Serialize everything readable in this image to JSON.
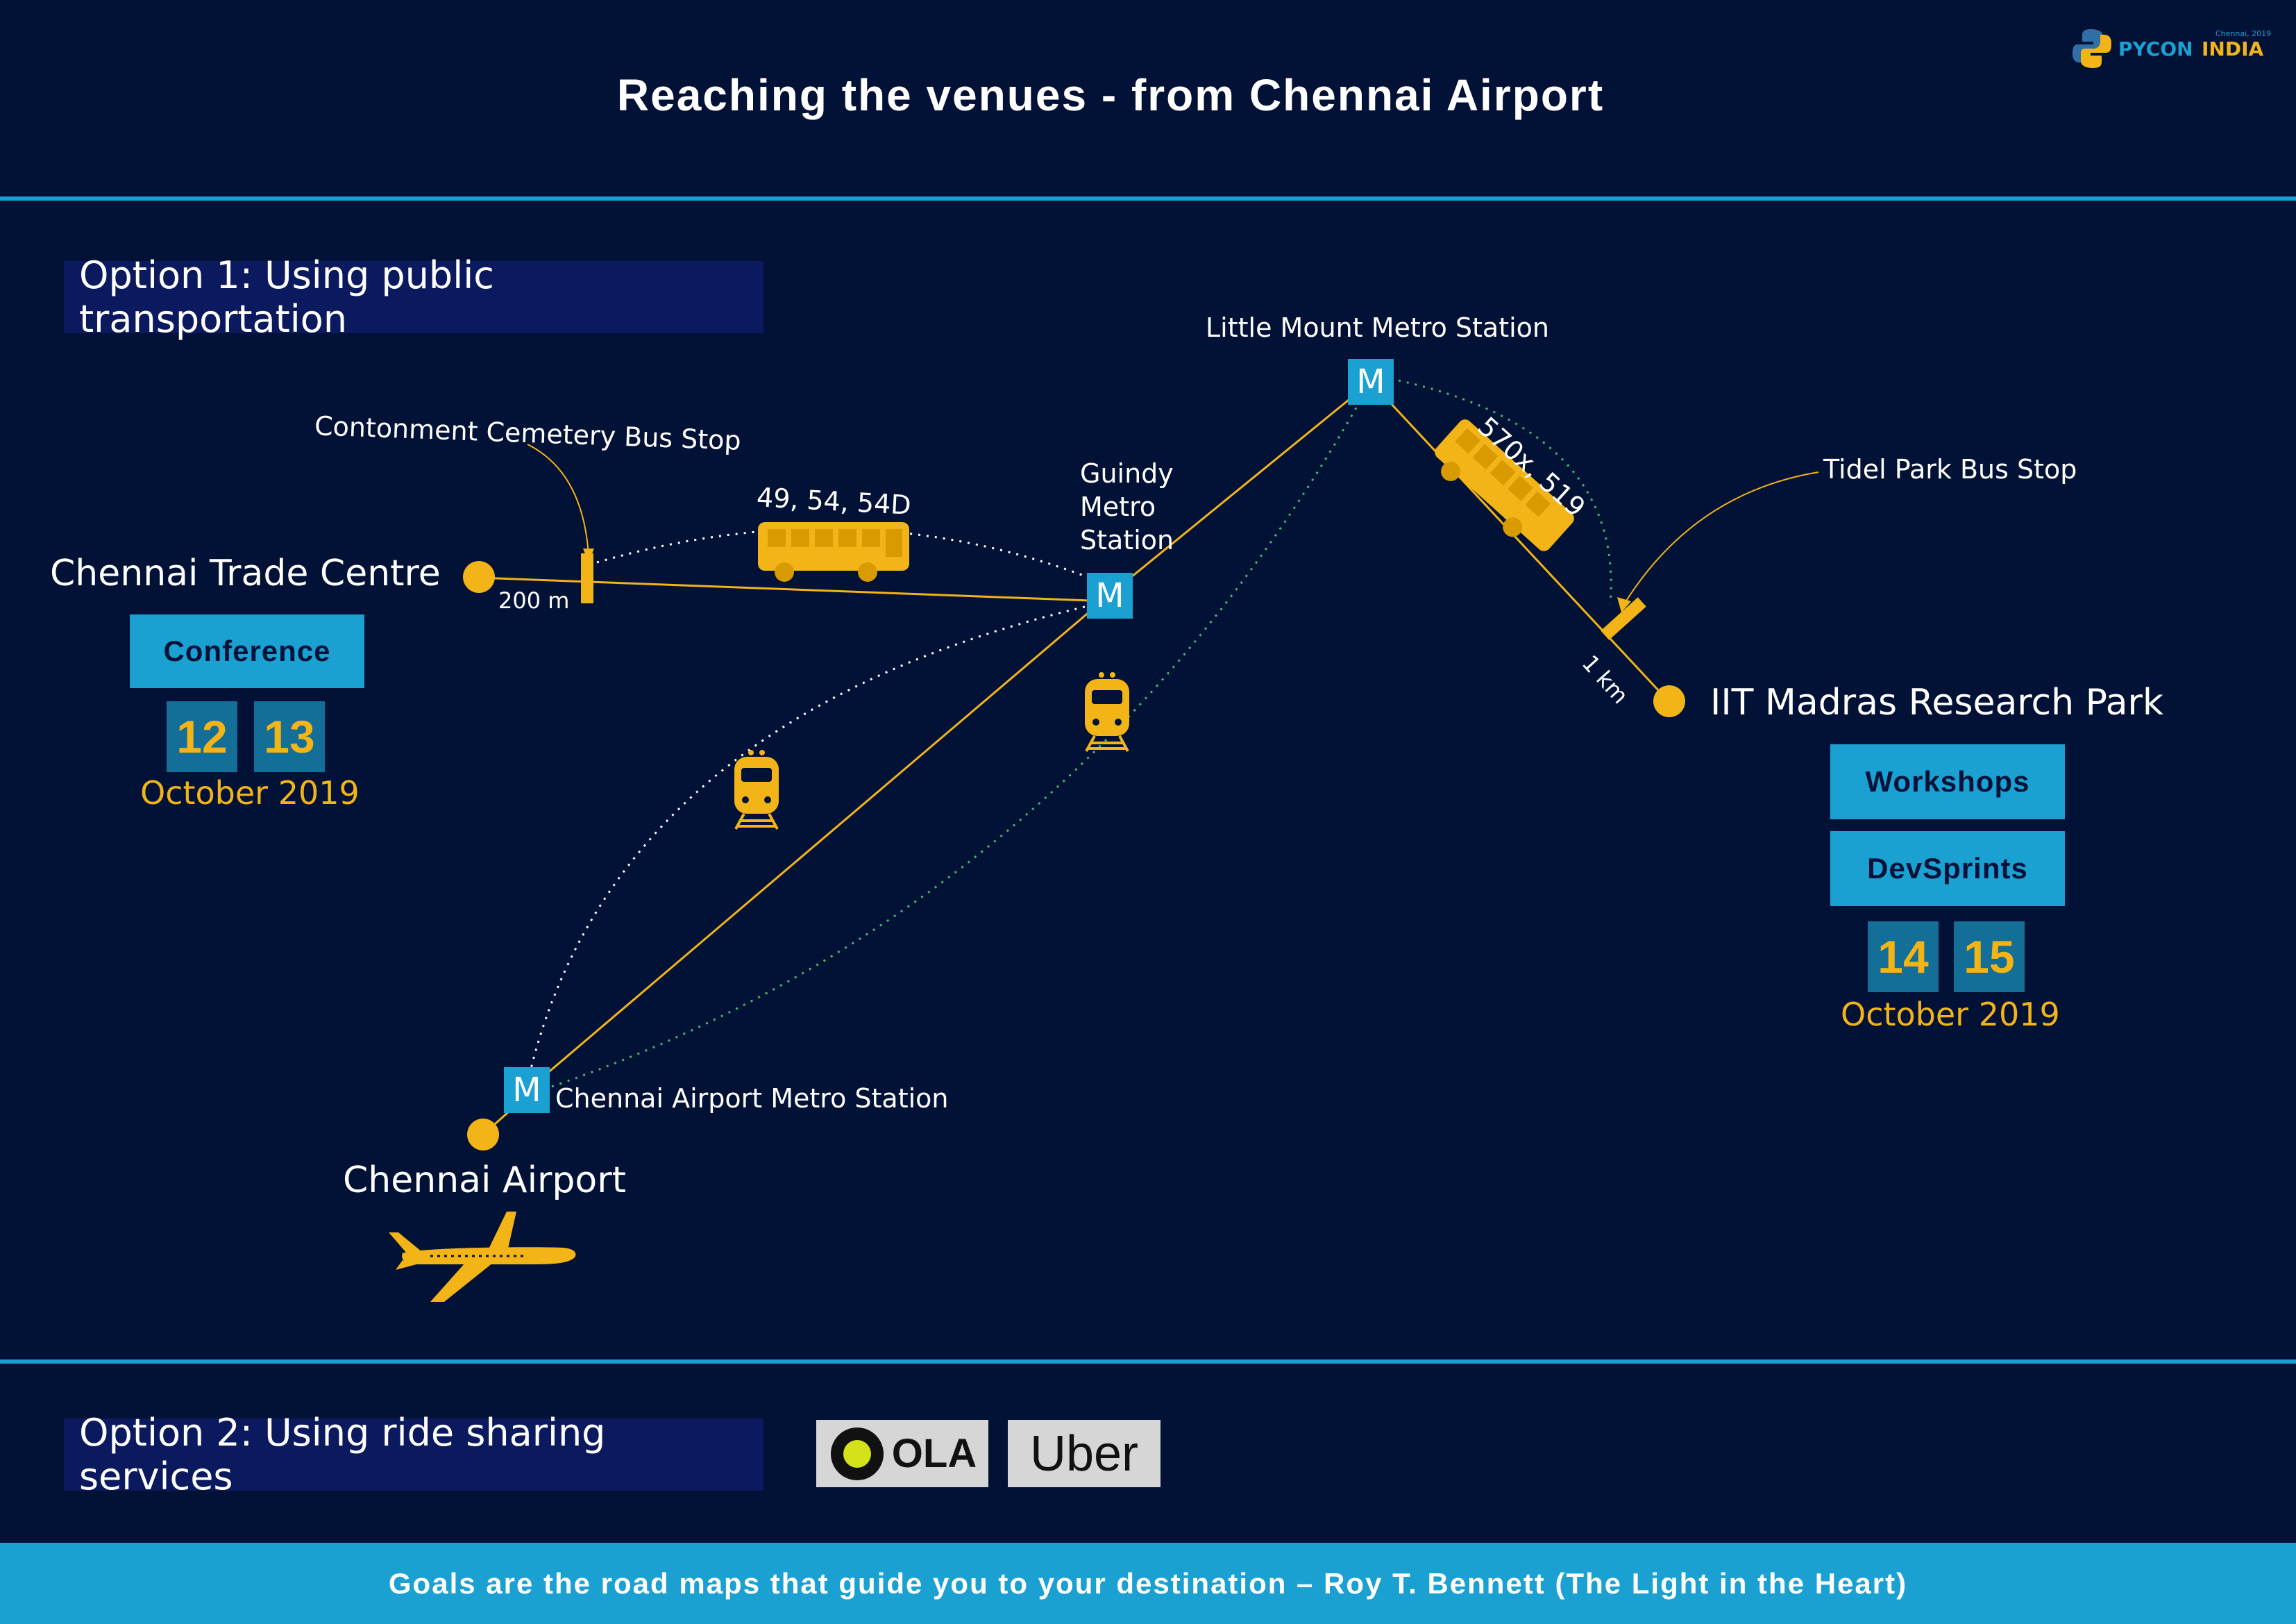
{
  "title": "Reaching the venues - from Chennai Airport",
  "logo": {
    "brand_text": "PYCON",
    "india_text": "INDIA",
    "small_text": "Chennai, 2019"
  },
  "option1": "Option 1: Using public transportation",
  "option2": "Option 2: Using ride sharing services",
  "venues": {
    "trade_centre": {
      "name": "Chennai Trade Centre",
      "event": "Conference",
      "dates": [
        "12",
        "13"
      ],
      "month": "October 2019"
    },
    "iit": {
      "name": "IIT Madras Research Park",
      "events": [
        "Workshops",
        "DevSprints"
      ],
      "dates": [
        "14",
        "15"
      ],
      "month": "October 2019"
    },
    "airport": {
      "name": "Chennai Airport"
    }
  },
  "stations": {
    "little_mount": "Little Mount Metro Station",
    "guindy": [
      "Guindy",
      "Metro",
      "Station"
    ],
    "airport_metro": "Chennai Airport Metro Station",
    "metro_symbol": "M"
  },
  "bus_stops": {
    "contonment": "Contonment Cemetery Bus Stop",
    "tidel": "Tidel Park Bus Stop"
  },
  "routes": {
    "bus_guindy": "49, 54, 54D",
    "bus_little_mount": "570x, 519",
    "walk_trade_centre": "200 m",
    "walk_iit": "1 km"
  },
  "ride_sharing": {
    "ola": "OLA",
    "uber": "Uber"
  },
  "footer": "Goals are the road maps that guide you to your destination – Roy T. Bennett (The Light in the Heart)",
  "colors": {
    "background": "#021136",
    "accent_blue": "#1ba0d2",
    "accent_yellow": "#f2b416",
    "option_box": "#0b1a5e"
  },
  "icons": [
    "bus-icon",
    "train-icon",
    "airplane-icon",
    "metro-icon",
    "python-logo-icon"
  ]
}
